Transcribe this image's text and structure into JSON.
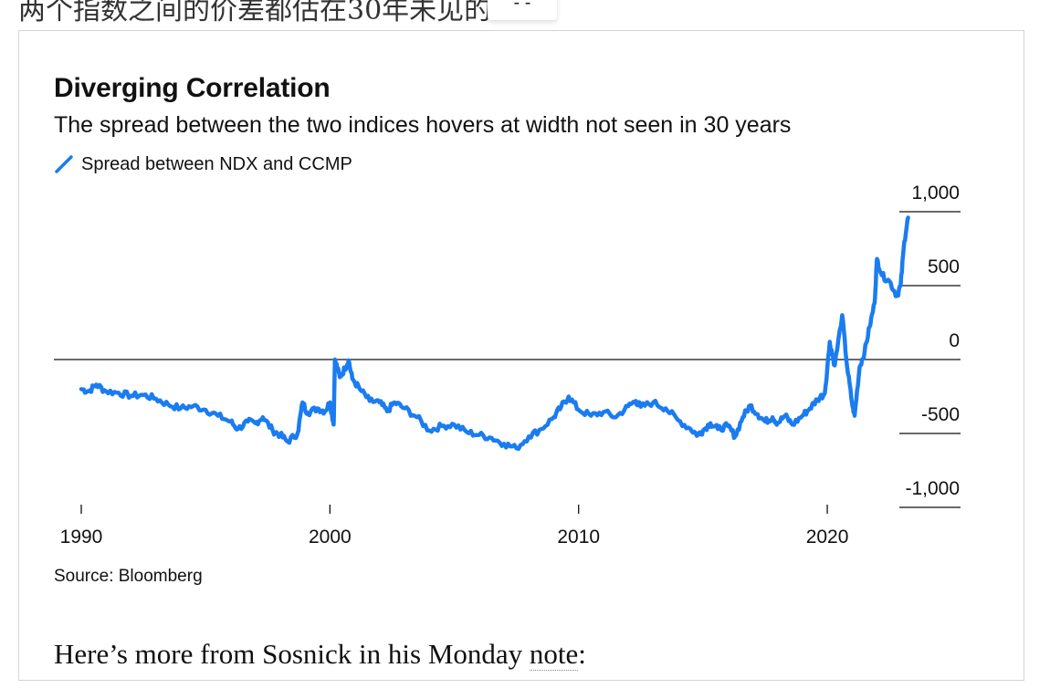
{
  "page": {
    "top_partial_text": "两个指数之间的价差都估在30年未见的",
    "top_pill_text": "- -",
    "source": "Source: Bloomberg",
    "body_prefix": "Here’s more from Sosnick in his Monday ",
    "body_link": "note",
    "body_suffix": ":"
  },
  "chart_data": {
    "type": "line",
    "title": "Diverging Correlation",
    "subtitle": "The spread between the two indices hovers at width not seen in 30 years",
    "series": [
      {
        "name": "Spread between NDX and CCMP",
        "color": "#1a7cf0",
        "points": [
          [
            1990.0,
            -200
          ],
          [
            1990.3,
            -215
          ],
          [
            1990.6,
            -170
          ],
          [
            1991.0,
            -215
          ],
          [
            1991.5,
            -225
          ],
          [
            1992.0,
            -245
          ],
          [
            1992.5,
            -240
          ],
          [
            1993.0,
            -265
          ],
          [
            1993.5,
            -305
          ],
          [
            1994.0,
            -330
          ],
          [
            1994.5,
            -315
          ],
          [
            1995.0,
            -340
          ],
          [
            1995.5,
            -380
          ],
          [
            1996.0,
            -420
          ],
          [
            1996.3,
            -470
          ],
          [
            1996.7,
            -420
          ],
          [
            1997.0,
            -430
          ],
          [
            1997.3,
            -390
          ],
          [
            1997.7,
            -480
          ],
          [
            1998.0,
            -510
          ],
          [
            1998.3,
            -555
          ],
          [
            1998.7,
            -500
          ],
          [
            1998.9,
            -290
          ],
          [
            1999.1,
            -360
          ],
          [
            1999.5,
            -330
          ],
          [
            1999.8,
            -350
          ],
          [
            2000.0,
            -290
          ],
          [
            2000.15,
            -440
          ],
          [
            2000.2,
            0
          ],
          [
            2000.4,
            -120
          ],
          [
            2000.6,
            -60
          ],
          [
            2000.75,
            -5
          ],
          [
            2000.9,
            -130
          ],
          [
            2001.2,
            -200
          ],
          [
            2001.6,
            -280
          ],
          [
            2002.0,
            -290
          ],
          [
            2002.3,
            -350
          ],
          [
            2002.6,
            -290
          ],
          [
            2003.0,
            -330
          ],
          [
            2003.5,
            -390
          ],
          [
            2004.0,
            -480
          ],
          [
            2004.5,
            -450
          ],
          [
            2005.0,
            -440
          ],
          [
            2005.5,
            -490
          ],
          [
            2006.0,
            -510
          ],
          [
            2006.5,
            -530
          ],
          [
            2007.0,
            -570
          ],
          [
            2007.5,
            -600
          ],
          [
            2008.0,
            -520
          ],
          [
            2008.5,
            -470
          ],
          [
            2009.0,
            -390
          ],
          [
            2009.3,
            -320
          ],
          [
            2009.6,
            -250
          ],
          [
            2010.0,
            -340
          ],
          [
            2010.5,
            -380
          ],
          [
            2011.0,
            -355
          ],
          [
            2011.5,
            -390
          ],
          [
            2012.0,
            -315
          ],
          [
            2012.3,
            -280
          ],
          [
            2012.5,
            -320
          ],
          [
            2013.0,
            -290
          ],
          [
            2013.5,
            -330
          ],
          [
            2014.0,
            -410
          ],
          [
            2014.5,
            -470
          ],
          [
            2014.8,
            -510
          ],
          [
            2015.0,
            -480
          ],
          [
            2015.3,
            -430
          ],
          [
            2015.6,
            -470
          ],
          [
            2016.0,
            -450
          ],
          [
            2016.3,
            -520
          ],
          [
            2016.6,
            -390
          ],
          [
            2016.9,
            -310
          ],
          [
            2017.2,
            -370
          ],
          [
            2017.5,
            -420
          ],
          [
            2017.8,
            -390
          ],
          [
            2018.0,
            -430
          ],
          [
            2018.3,
            -380
          ],
          [
            2018.6,
            -440
          ],
          [
            2019.0,
            -380
          ],
          [
            2019.3,
            -330
          ],
          [
            2019.6,
            -270
          ],
          [
            2019.9,
            -230
          ],
          [
            2020.1,
            120
          ],
          [
            2020.3,
            -40
          ],
          [
            2020.6,
            300
          ],
          [
            2020.8,
            -50
          ],
          [
            2021.0,
            -300
          ],
          [
            2021.1,
            -380
          ],
          [
            2021.3,
            -50
          ],
          [
            2021.5,
            50
          ],
          [
            2021.7,
            220
          ],
          [
            2021.9,
            380
          ],
          [
            2022.0,
            680
          ],
          [
            2022.2,
            570
          ],
          [
            2022.5,
            530
          ],
          [
            2022.8,
            430
          ],
          [
            2022.95,
            500
          ],
          [
            2023.1,
            800
          ],
          [
            2023.25,
            960
          ]
        ]
      }
    ],
    "x_ticks": [
      "1990",
      "2000",
      "2010",
      "2020"
    ],
    "y_ticks": [
      "1,000",
      "500",
      "0",
      "-500",
      "-1,000"
    ],
    "xlim": [
      1990,
      2024
    ],
    "ylim": [
      -1000,
      1000
    ],
    "zero_line": true,
    "grid": false,
    "legend_position": "top-left"
  }
}
